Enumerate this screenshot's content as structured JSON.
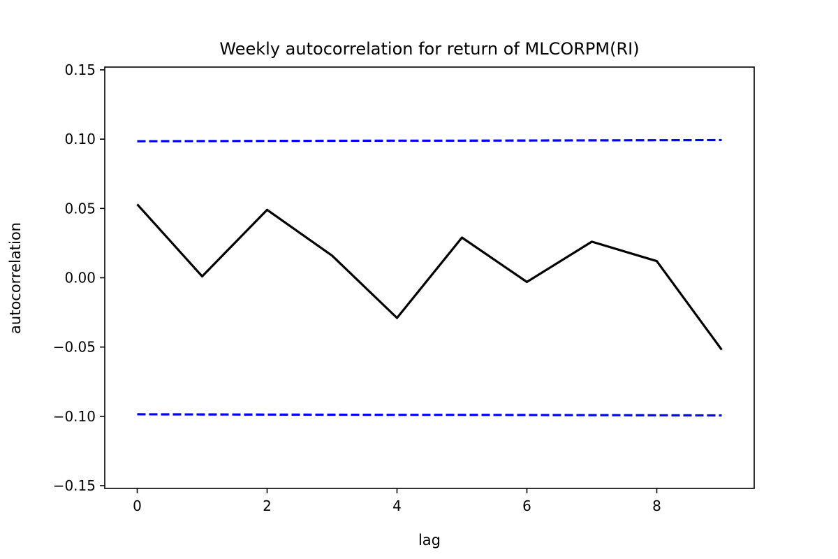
{
  "chart_data": {
    "type": "line",
    "title": "Weekly autocorrelation for  return of MLCORPM(RI)",
    "xlabel": "lag",
    "ylabel": "autocorrelation",
    "xlim": [
      -0.5,
      9.5
    ],
    "ylim": [
      -0.152,
      0.152
    ],
    "xticks": [
      0,
      2,
      4,
      6,
      8
    ],
    "xtick_labels": [
      "0",
      "2",
      "4",
      "6",
      "8"
    ],
    "yticks": [
      0.15,
      0.1,
      0.05,
      0.0,
      -0.05,
      -0.1,
      -0.15
    ],
    "ytick_labels": [
      "0.15",
      "0.10",
      "0.05",
      "0.00",
      "−0.05",
      "−0.10",
      "−0.15"
    ],
    "grid": false,
    "series": [
      {
        "role": "autocorrelation",
        "style": "solid",
        "color": "#000000",
        "x": [
          0,
          1,
          2,
          3,
          4,
          5,
          6,
          7,
          8,
          9
        ],
        "values": [
          0.053,
          0.001,
          0.049,
          0.016,
          -0.029,
          0.029,
          -0.003,
          0.026,
          0.012,
          -0.052
        ]
      },
      {
        "role": "upper-confidence-bound",
        "style": "dashed",
        "color": "#0000ff",
        "x": [
          0,
          1,
          2,
          3,
          4,
          5,
          6,
          7,
          8,
          9
        ],
        "values": [
          0.0985,
          0.0986,
          0.0987,
          0.0988,
          0.0989,
          0.0989,
          0.099,
          0.0991,
          0.0992,
          0.0993
        ]
      },
      {
        "role": "lower-confidence-bound",
        "style": "dashed",
        "color": "#0000ff",
        "x": [
          0,
          1,
          2,
          3,
          4,
          5,
          6,
          7,
          8,
          9
        ],
        "values": [
          -0.0985,
          -0.0986,
          -0.0987,
          -0.0988,
          -0.0989,
          -0.0989,
          -0.099,
          -0.0991,
          -0.0992,
          -0.0993
        ]
      }
    ]
  }
}
